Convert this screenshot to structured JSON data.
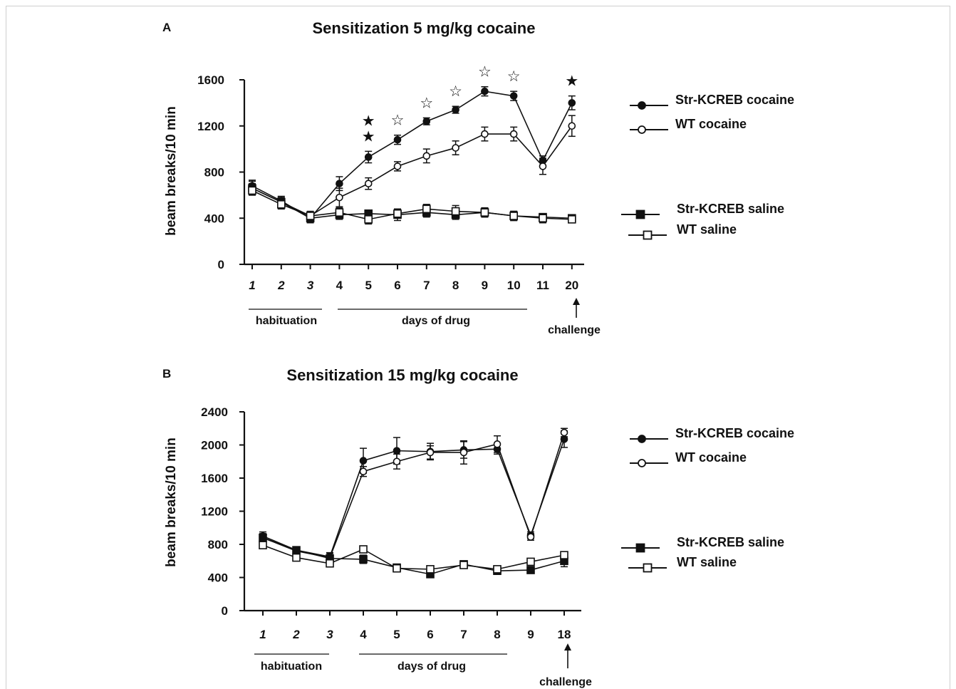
{
  "chart_data": [
    {
      "panel": "A",
      "type": "line",
      "title": "Sensitization 5 mg/kg cocaine",
      "xlabel": "",
      "ylabel": "beam breaks/10 min",
      "ylim": [
        0,
        1600
      ],
      "yticks": [
        "0",
        "400",
        "800",
        "1200",
        "1600"
      ],
      "categories": [
        "1",
        "2",
        "3",
        "4",
        "5",
        "6",
        "7",
        "8",
        "9",
        "10",
        "11",
        "20"
      ],
      "italic_categories": [
        "1",
        "2",
        "3"
      ],
      "grid": false,
      "legend_position": "right",
      "series": [
        {
          "name": "Str-KCREB cocaine",
          "marker": "filled-circle",
          "values": [
            680,
            550,
            400,
            700,
            930,
            1080,
            1240,
            1340,
            1500,
            1460,
            900,
            1400
          ],
          "errors": [
            50,
            40,
            40,
            60,
            50,
            40,
            30,
            30,
            40,
            40,
            40,
            60
          ]
        },
        {
          "name": "WT cocaine",
          "marker": "open-circle",
          "values": [
            660,
            540,
            420,
            580,
            700,
            850,
            940,
            1010,
            1130,
            1130,
            850,
            1200
          ],
          "errors": [
            60,
            40,
            40,
            80,
            50,
            40,
            60,
            60,
            60,
            60,
            70,
            90
          ]
        },
        {
          "name": "Str-KCREB saline",
          "marker": "filled-square",
          "values": [
            660,
            540,
            400,
            430,
            440,
            430,
            450,
            430,
            450,
            420,
            410,
            400
          ],
          "errors": [
            40,
            40,
            30,
            40,
            30,
            50,
            40,
            40,
            40,
            40,
            30,
            30
          ]
        },
        {
          "name": "WT saline",
          "marker": "open-square",
          "values": [
            640,
            520,
            420,
            450,
            390,
            440,
            480,
            460,
            450,
            420,
            400,
            390
          ],
          "errors": [
            40,
            40,
            30,
            40,
            40,
            40,
            40,
            50,
            40,
            40,
            40,
            30
          ]
        }
      ],
      "significance": [
        {
          "category": "5",
          "symbol": "★",
          "count": 2
        },
        {
          "category": "6",
          "symbol": "☆",
          "count": 1
        },
        {
          "category": "7",
          "symbol": "☆",
          "count": 1
        },
        {
          "category": "8",
          "symbol": "☆",
          "count": 1
        },
        {
          "category": "9",
          "symbol": "☆",
          "count": 1
        },
        {
          "category": "10",
          "symbol": "☆",
          "count": 1
        },
        {
          "category": "20",
          "symbol": "★",
          "count": 1
        }
      ],
      "annotations": {
        "habituation": "habituation",
        "drug": "days of drug",
        "challenge": "challenge"
      }
    },
    {
      "panel": "B",
      "type": "line",
      "title": "Sensitization 15 mg/kg cocaine",
      "xlabel": "",
      "ylabel": "beam breaks/10 min",
      "ylim": [
        0,
        2400
      ],
      "yticks": [
        "0",
        "400",
        "800",
        "1200",
        "1600",
        "2000",
        "2400"
      ],
      "categories": [
        "1",
        "2",
        "3",
        "4",
        "5",
        "6",
        "7",
        "8",
        "9",
        "18"
      ],
      "italic_categories": [
        "1",
        "2",
        "3"
      ],
      "grid": false,
      "legend_position": "right",
      "series": [
        {
          "name": "Str-KCREB cocaine",
          "marker": "filled-circle",
          "values": [
            900,
            730,
            650,
            1810,
            1930,
            1920,
            1940,
            1950,
            910,
            2070
          ],
          "errors": [
            50,
            40,
            50,
            150,
            160,
            100,
            100,
            60,
            40,
            100
          ]
        },
        {
          "name": "WT cocaine",
          "marker": "open-circle",
          "values": [
            880,
            720,
            640,
            1680,
            1800,
            1910,
            1910,
            2010,
            890,
            2150
          ],
          "errors": [
            50,
            40,
            50,
            60,
            90,
            80,
            140,
            100,
            40,
            50
          ]
        },
        {
          "name": "Str-KCREB saline",
          "marker": "filled-square",
          "values": [
            880,
            730,
            630,
            620,
            520,
            440,
            560,
            480,
            490,
            600
          ],
          "errors": [
            40,
            40,
            40,
            50,
            40,
            40,
            40,
            30,
            40,
            70
          ]
        },
        {
          "name": "WT saline",
          "marker": "open-square",
          "values": [
            790,
            640,
            570,
            740,
            510,
            500,
            550,
            500,
            590,
            670
          ],
          "errors": [
            40,
            30,
            40,
            40,
            40,
            40,
            30,
            30,
            30,
            40
          ]
        }
      ],
      "annotations": {
        "habituation": "habituation",
        "drug": "days of drug",
        "challenge": "challenge"
      }
    }
  ],
  "panel_labels": [
    "A",
    "B"
  ]
}
